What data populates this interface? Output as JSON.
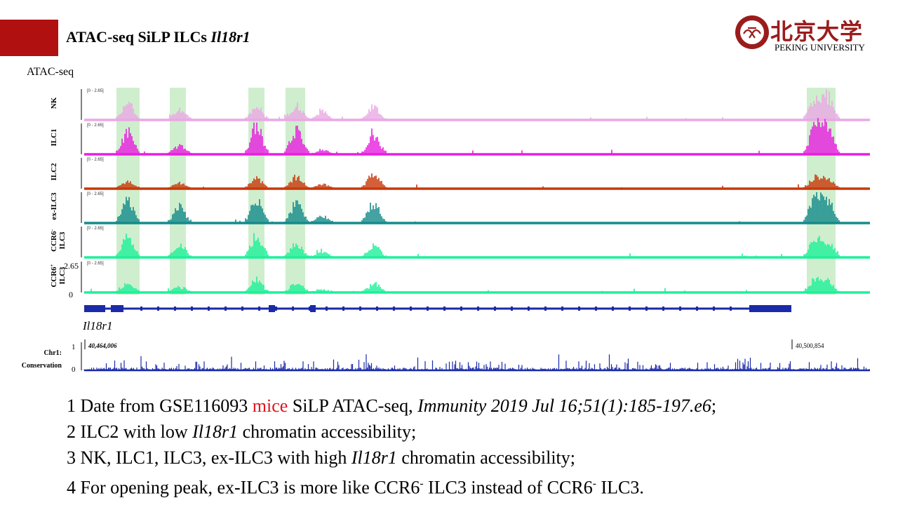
{
  "slide": {
    "title_prefix": "ATAC-seq SiLP ILCs ",
    "title_gene": "Il18r1"
  },
  "logo": {
    "chinese": "北京大学",
    "english": "PEKING UNIVERSITY"
  },
  "figure": {
    "section_label": "ATAC-seq",
    "range_label": "[0 - 2.65]",
    "axis_max": "2.65",
    "axis_min": "0",
    "gene_label": "Il18r1",
    "conservation_label_1": "Chr1:",
    "conservation_label_2": "Conservation",
    "cons_axis_max": "1",
    "cons_axis_min": "0",
    "coord_start": "40,464,006",
    "coord_end": "40,500,854",
    "highlight_color": "#cfeecd",
    "tracks": [
      {
        "name": "NK",
        "line1": "NK",
        "line2": "",
        "sup": "",
        "color": "#e9a9e4"
      },
      {
        "name": "ILC1",
        "line1": "ILC1",
        "line2": "",
        "sup": "",
        "color": "#e81ee0"
      },
      {
        "name": "ILC2",
        "line1": "ILC2",
        "line2": "",
        "sup": "",
        "color": "#c8380a"
      },
      {
        "name": "ex-ILC3",
        "line1": "ex-ILC3",
        "line2": "",
        "sup": "",
        "color": "#158b8b"
      },
      {
        "name": "CCR6- ILC3",
        "line1": "CCR6",
        "line2": "ILC3",
        "sup": "-",
        "color": "#1ef09a"
      },
      {
        "name": "CCR6+ ILC3",
        "line1": "CCR6",
        "line2": "ILC3",
        "sup": "+",
        "color": "#1ef09a"
      }
    ]
  },
  "notes": [
    {
      "num": "1",
      "a": " Date from GSE116093 ",
      "b": "mice",
      "c": " SiLP ATAC-seq, ",
      "d": "Immunity 2019 Jul 16;51(1):185-197.e6",
      "e": ";"
    },
    {
      "num": "2",
      "a": " ILC2 with low ",
      "d": "Il18r1",
      "e": " chromatin accessibility;"
    },
    {
      "num": "3",
      "a": " NK, ILC1, ILC3, ex-ILC3 with high ",
      "d": "Il18r1",
      "e": " chromatin accessibility;"
    },
    {
      "num": "4",
      "a": " For opening peak, ex-ILC3 is more like CCR6",
      "s1": "-",
      "b2": " ILC3 instead of CCR6",
      "s2": "-",
      "e": " ILC3."
    }
  ]
}
